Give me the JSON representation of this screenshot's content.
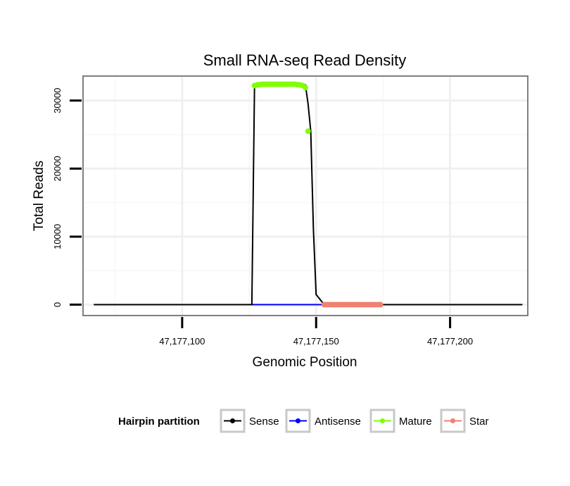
{
  "chart_data": {
    "type": "line",
    "title": "Small RNA-seq Read Density",
    "xlabel": "Genomic Position",
    "ylabel": "Total Reads",
    "xlim": [
      47177063,
      47177229
    ],
    "ylim": [
      -1600,
      33600
    ],
    "x_ticks": [
      {
        "value": 47177100,
        "label": "47,177,100"
      },
      {
        "value": 47177150,
        "label": "47,177,150"
      },
      {
        "value": 47177200,
        "label": "47,177,200"
      }
    ],
    "y_ticks": [
      {
        "value": 0,
        "label": "0"
      },
      {
        "value": 10000,
        "label": "10000"
      },
      {
        "value": 20000,
        "label": "20000"
      },
      {
        "value": 30000,
        "label": "30000"
      }
    ],
    "grid": true,
    "legend": {
      "title": "Hairpin partition",
      "placement": "bottom",
      "entries": [
        {
          "name": "Sense",
          "color": "#000000"
        },
        {
          "name": "Antisense",
          "color": "#0000ff"
        },
        {
          "name": "Mature",
          "color": "#7fff00"
        },
        {
          "name": "Star",
          "color": "#f08070"
        }
      ]
    },
    "series": [
      {
        "name": "Sense",
        "color": "#000000",
        "style": "line",
        "points": [
          [
            47177067,
            0
          ],
          [
            47177126,
            0
          ],
          [
            47177127,
            32300
          ],
          [
            47177146,
            32300
          ],
          [
            47177147,
            29500
          ],
          [
            47177148,
            25500
          ],
          [
            47177149,
            11000
          ],
          [
            47177150,
            1500
          ],
          [
            47177153,
            0
          ],
          [
            47177227,
            0
          ]
        ]
      },
      {
        "name": "Antisense",
        "color": "#0000ff",
        "style": "line",
        "points": [
          [
            47177126,
            0
          ],
          [
            47177153,
            0
          ]
        ]
      },
      {
        "name": "Mature",
        "color": "#7fff00",
        "style": "points",
        "points": [
          [
            47177127,
            32200
          ],
          [
            47177128,
            32300
          ],
          [
            47177129,
            32350
          ],
          [
            47177130,
            32400
          ],
          [
            47177131,
            32400
          ],
          [
            47177132,
            32400
          ],
          [
            47177133,
            32400
          ],
          [
            47177134,
            32400
          ],
          [
            47177135,
            32400
          ],
          [
            47177136,
            32400
          ],
          [
            47177137,
            32400
          ],
          [
            47177138,
            32400
          ],
          [
            47177139,
            32400
          ],
          [
            47177140,
            32400
          ],
          [
            47177141,
            32400
          ],
          [
            47177142,
            32400
          ],
          [
            47177143,
            32350
          ],
          [
            47177144,
            32300
          ],
          [
            47177145,
            32200
          ],
          [
            47177146,
            31900
          ],
          [
            47177147,
            25500
          ]
        ]
      },
      {
        "name": "Star",
        "color": "#f08070",
        "style": "points",
        "points": [
          [
            47177153,
            0
          ],
          [
            47177154,
            0
          ],
          [
            47177155,
            0
          ],
          [
            47177156,
            0
          ],
          [
            47177157,
            0
          ],
          [
            47177158,
            0
          ],
          [
            47177159,
            0
          ],
          [
            47177160,
            0
          ],
          [
            47177161,
            0
          ],
          [
            47177162,
            0
          ],
          [
            47177163,
            0
          ],
          [
            47177164,
            0
          ],
          [
            47177165,
            0
          ],
          [
            47177166,
            0
          ],
          [
            47177167,
            0
          ],
          [
            47177168,
            0
          ],
          [
            47177169,
            0
          ],
          [
            47177170,
            0
          ],
          [
            47177171,
            0
          ],
          [
            47177172,
            0
          ],
          [
            47177173,
            0
          ],
          [
            47177174,
            0
          ]
        ]
      }
    ]
  }
}
